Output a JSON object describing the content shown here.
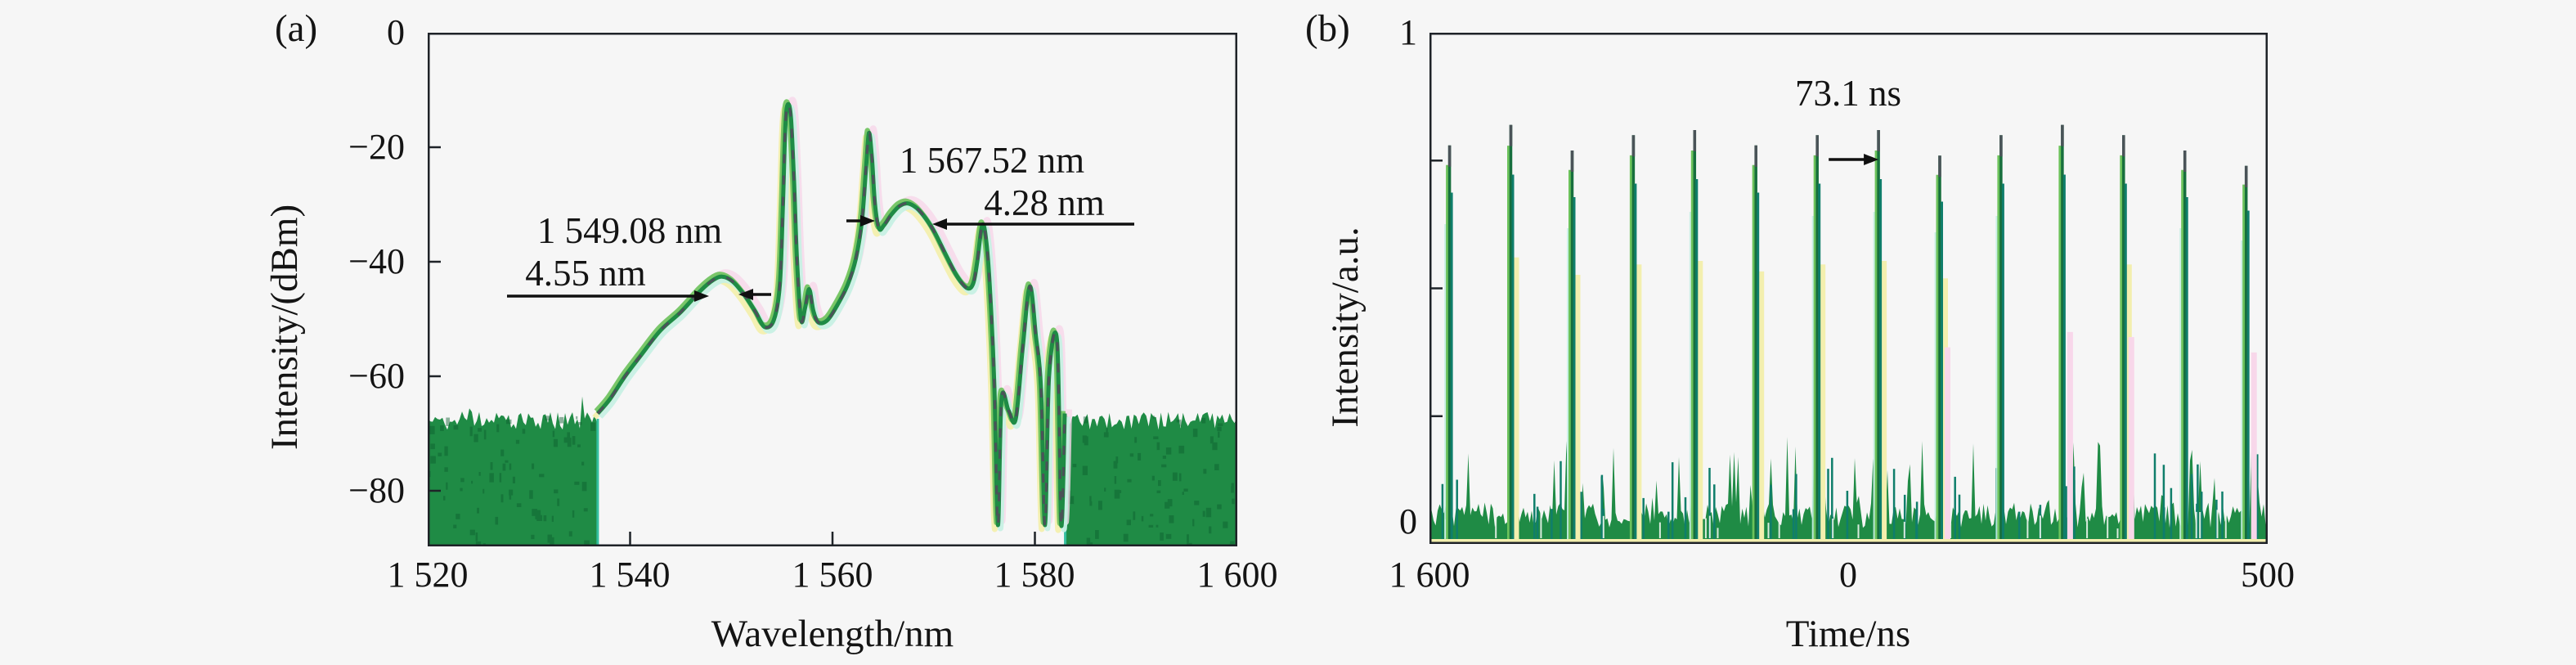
{
  "figure": {
    "background": "#f6f6f6"
  },
  "panels": {
    "a": {
      "label": "(a)",
      "xlabel": "Wavelength/nm",
      "ylabel": "Intensity/(dBm)",
      "x_ticks": [
        "1 520",
        "1 540",
        "1 560",
        "1 580",
        "1 600"
      ],
      "y_ticks": [
        "0",
        "−20",
        "−40",
        "−60",
        "−80"
      ],
      "annotations": {
        "peak1_wavelength": "1 549.08 nm",
        "peak1_bandwidth": "4.55 nm",
        "peak2_wavelength": "1 567.52 nm",
        "peak2_bandwidth": "4.28 nm"
      }
    },
    "b": {
      "label": "(b)",
      "xlabel": "Time/ns",
      "ylabel": "Intensity/a.u.",
      "x_ticks": [
        "1 600",
        "0",
        "500"
      ],
      "y_ticks": [
        "1",
        "0"
      ],
      "annotations": {
        "pulse_period": "73.1 ns"
      }
    }
  },
  "colors": {
    "background": "#f6f6f6",
    "axis": "#1f2328",
    "text": "#141414",
    "annotation_black": "#101010",
    "trace_green": "#1f8b45",
    "trace_dark_green": "#176f3d",
    "trace_light_green": "#6cc25b",
    "trace_teal": "#0f7e6b",
    "trace_gray": "#4a5358",
    "ghost_cyan": "#c7f0e4",
    "ghost_yellow": "#f3efae",
    "ghost_pink": "#f8d7ea",
    "speckle_dark": "#0c5d2e",
    "edge_teal": "#35bfa0"
  },
  "chart_data": [
    {
      "type": "line",
      "panel": "a",
      "xlabel": "Wavelength/nm",
      "ylabel": "Intensity/(dBm)",
      "xlim": [
        1520,
        1600
      ],
      "ylim": [
        -89.7,
        0
      ],
      "x_tick_values": [
        1520,
        1540,
        1560,
        1580,
        1600
      ],
      "y_tick_values": [
        0,
        -20,
        -40,
        -60,
        -80
      ],
      "noise_floor_dbm": -68,
      "noise_regions_nm": [
        [
          1520,
          1536.8
        ],
        [
          1583,
          1600
        ]
      ],
      "peaks": [
        {
          "wavelength_nm": 1549.08,
          "bandwidth_nm": 4.55,
          "peak_dbm": -42.6
        },
        {
          "wavelength_nm": 1555.6,
          "peak_dbm": -12.5
        },
        {
          "wavelength_nm": 1563.6,
          "peak_dbm": -17.5
        },
        {
          "wavelength_nm": 1567.52,
          "bandwidth_nm": 4.28,
          "peak_dbm": -29.8
        },
        {
          "wavelength_nm": 1574.8,
          "peak_dbm": -33.6
        },
        {
          "wavelength_nm": 1579.5,
          "peak_dbm": -44.3
        }
      ],
      "profile_nm_dbm": [
        [
          1536.8,
          -66.5
        ],
        [
          1538,
          -64
        ],
        [
          1539.5,
          -60
        ],
        [
          1541,
          -56.5
        ],
        [
          1543,
          -52
        ],
        [
          1545,
          -48.8
        ],
        [
          1547,
          -45
        ],
        [
          1548.2,
          -43.2
        ],
        [
          1549.1,
          -42.6
        ],
        [
          1550.1,
          -43.4
        ],
        [
          1551.3,
          -45.8
        ],
        [
          1552.4,
          -48.8
        ],
        [
          1553.3,
          -51.4
        ],
        [
          1554.2,
          -50.2
        ],
        [
          1554.8,
          -44
        ],
        [
          1555.1,
          -30
        ],
        [
          1555.35,
          -16
        ],
        [
          1555.6,
          -12.5
        ],
        [
          1555.9,
          -15
        ],
        [
          1556.2,
          -26
        ],
        [
          1556.5,
          -40
        ],
        [
          1556.9,
          -50.2
        ],
        [
          1557.3,
          -48
        ],
        [
          1557.7,
          -44.8
        ],
        [
          1558.1,
          -48.5
        ],
        [
          1558.6,
          -50.6
        ],
        [
          1559.5,
          -50.2
        ],
        [
          1560.5,
          -47.5
        ],
        [
          1561.5,
          -44
        ],
        [
          1562.3,
          -39.5
        ],
        [
          1562.9,
          -33
        ],
        [
          1563.3,
          -24
        ],
        [
          1563.6,
          -17.5
        ],
        [
          1563.9,
          -22
        ],
        [
          1564.2,
          -30
        ],
        [
          1564.6,
          -34.2
        ],
        [
          1565.1,
          -33.6
        ],
        [
          1565.8,
          -31.8
        ],
        [
          1566.6,
          -30.3
        ],
        [
          1567.4,
          -29.8
        ],
        [
          1568.3,
          -30.6
        ],
        [
          1569.2,
          -32.4
        ],
        [
          1570.1,
          -34.9
        ],
        [
          1571.2,
          -38.8
        ],
        [
          1572.3,
          -42.5
        ],
        [
          1573.3,
          -44.6
        ],
        [
          1573.9,
          -43.8
        ],
        [
          1574.3,
          -40
        ],
        [
          1574.8,
          -33.6
        ],
        [
          1575.2,
          -36.5
        ],
        [
          1575.6,
          -46
        ],
        [
          1576,
          -62
        ],
        [
          1576.35,
          -86
        ],
        [
          1576.7,
          -64
        ],
        [
          1577.4,
          -66
        ],
        [
          1578.1,
          -67.5
        ],
        [
          1578.8,
          -55
        ],
        [
          1579.5,
          -44.3
        ],
        [
          1580.1,
          -53
        ],
        [
          1580.6,
          -62
        ],
        [
          1581,
          -86
        ],
        [
          1581.4,
          -60
        ],
        [
          1582.2,
          -54
        ],
        [
          1582.6,
          -86
        ],
        [
          1582.95,
          -66.5
        ]
      ],
      "annotations": [
        "1 549.08 nm",
        "4.55 nm",
        "1 567.52 nm",
        "4.28 nm"
      ]
    },
    {
      "type": "line",
      "panel": "b",
      "xlabel": "Time/ns",
      "ylabel": "Intensity/a.u.",
      "xlim_ns": [
        -500,
        500
      ],
      "x_tick_labels": [
        "1 600",
        "0",
        "500"
      ],
      "ylim": [
        0,
        1
      ],
      "y_tick_labels": [
        "0",
        "1"
      ],
      "unlabeled_y_ticks": [
        0.25,
        0.5,
        0.75
      ],
      "pulse_period_ns": 73.1,
      "annotation": "73.1 ns",
      "pulse_times_ns": [
        -476,
        -402.9,
        -329.8,
        -256.7,
        -183.6,
        -110.5,
        -37.4,
        35.7,
        108.8,
        181.9,
        255,
        328.1,
        401.2,
        474.3
      ],
      "pulse_heights_au": [
        0.77,
        0.81,
        0.76,
        0.79,
        0.8,
        0.77,
        0.79,
        0.8,
        0.75,
        0.79,
        0.81,
        0.79,
        0.76,
        0.73
      ],
      "noise_band_au": 0.1,
      "arrow_between_pulses": [
        -37.4,
        35.7
      ]
    }
  ]
}
